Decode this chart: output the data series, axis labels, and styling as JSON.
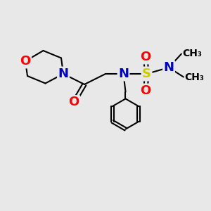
{
  "bg_color": "#e8e8e8",
  "atom_colors": {
    "C": "#000000",
    "N": "#0000cc",
    "O": "#ff0000",
    "S": "#cccc00"
  },
  "bond_color": "#000000",
  "bond_width": 1.5,
  "font_size_atoms": 13,
  "font_size_small": 10,
  "xlim": [
    0,
    10
  ],
  "ylim": [
    0,
    10
  ]
}
